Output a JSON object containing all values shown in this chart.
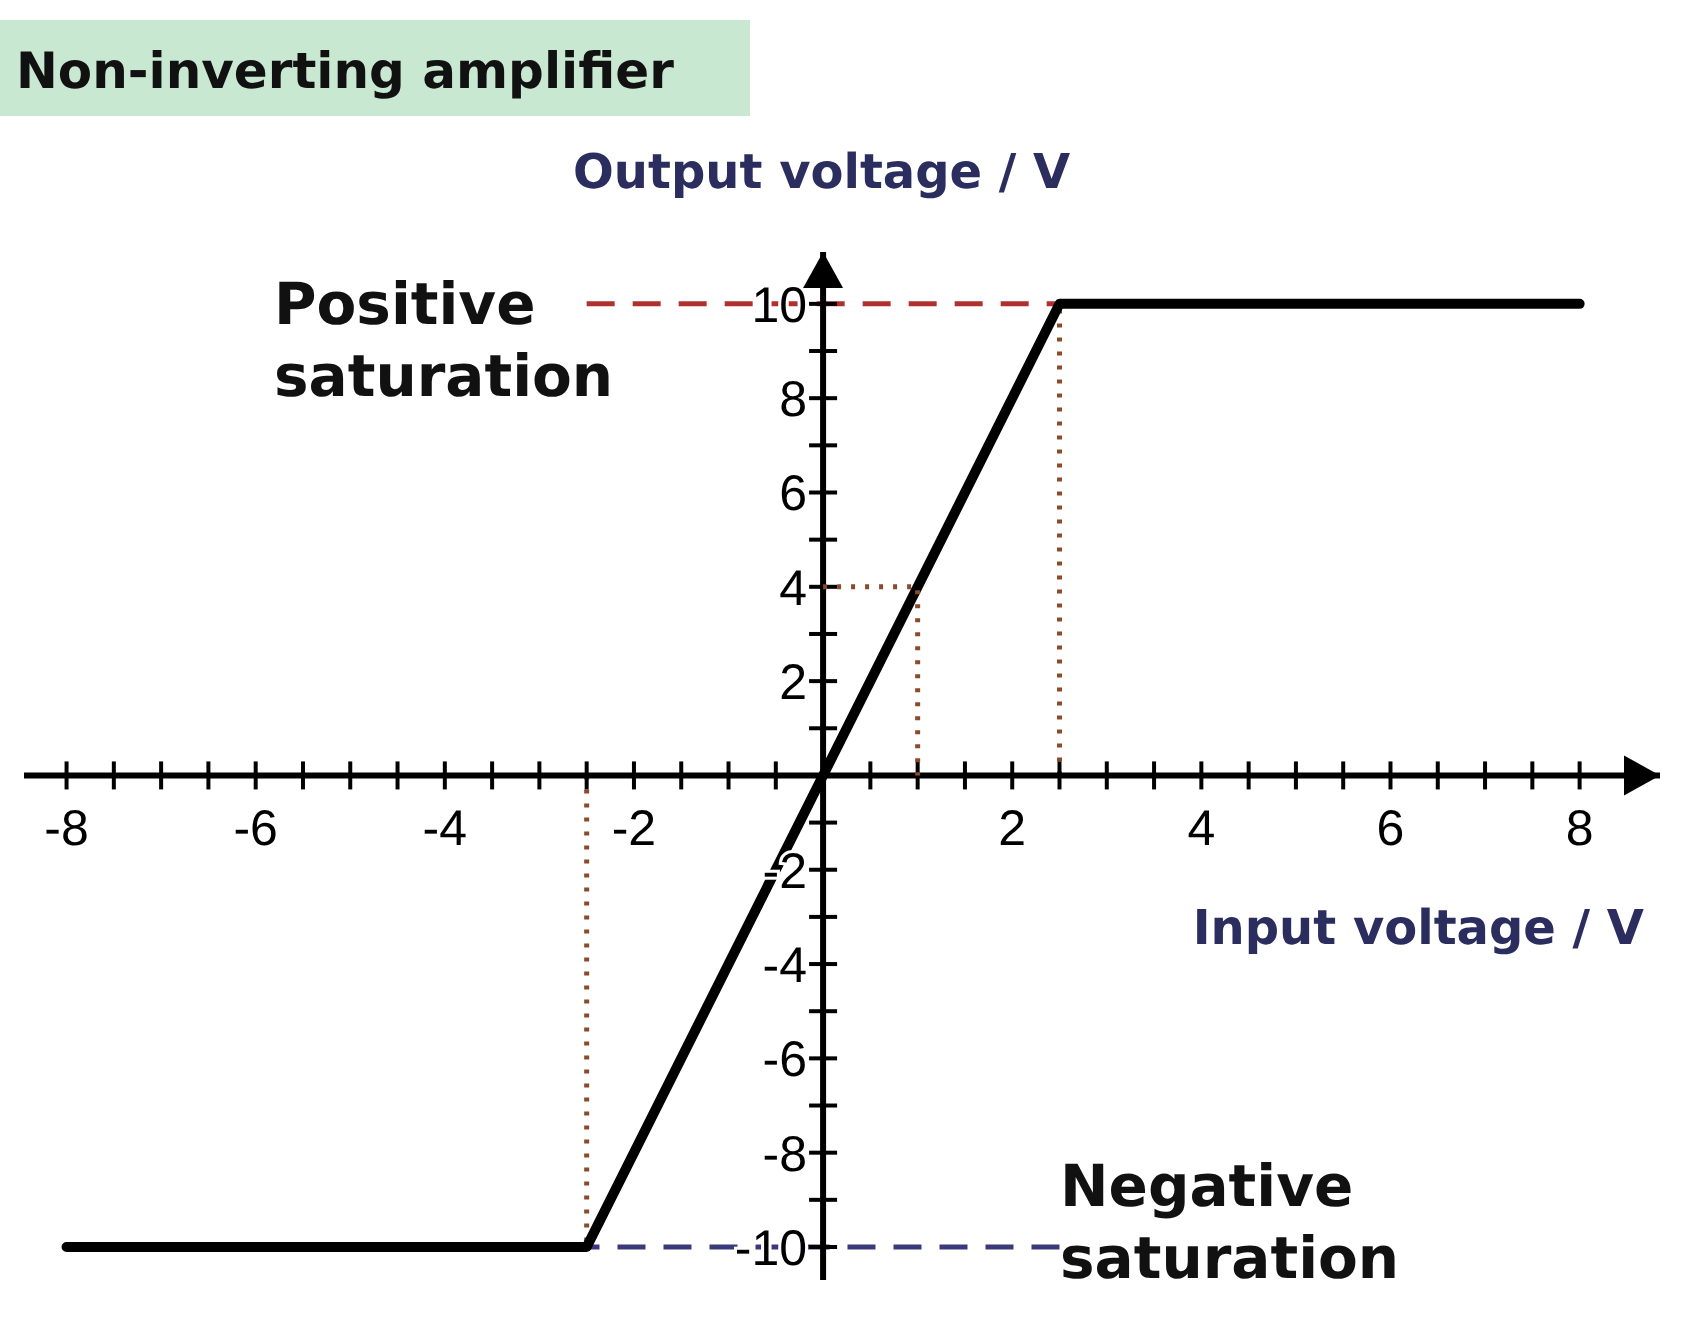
{
  "chart_data": {
    "type": "line",
    "title": "Non-inverting amplifier",
    "xlabel": "Input voltage / V",
    "ylabel": "Output voltage / V",
    "xlim": [
      -8.45,
      8.85
    ],
    "ylim": [
      -10.7,
      11.1
    ],
    "xticks": [
      -8,
      {
        "value": -7.5,
        "label": null
      },
      {
        "value": -7,
        "label": null
      },
      {
        "value": -6.5,
        "label": null
      },
      -6,
      {
        "value": -5.5,
        "label": null
      },
      {
        "value": -5,
        "label": null
      },
      {
        "value": -4.5,
        "label": null
      },
      -4,
      {
        "value": -3.5,
        "label": null
      },
      {
        "value": -3,
        "label": null
      },
      {
        "value": -2.5,
        "label": null
      },
      -2,
      {
        "value": -1.5,
        "label": null
      },
      {
        "value": -1,
        "label": null
      },
      {
        "value": -0.5,
        "label": null
      },
      {
        "value": 0.5,
        "label": null
      },
      {
        "value": 1,
        "label": null
      },
      {
        "value": 1.5,
        "label": null
      },
      2,
      {
        "value": 2.5,
        "label": null
      },
      {
        "value": 3,
        "label": null
      },
      {
        "value": 3.5,
        "label": null
      },
      4,
      {
        "value": 4.5,
        "label": null
      },
      {
        "value": 5,
        "label": null
      },
      {
        "value": 5.5,
        "label": null
      },
      6,
      {
        "value": 6.5,
        "label": null
      },
      {
        "value": 7,
        "label": null
      },
      {
        "value": 7.5,
        "label": null
      },
      8
    ],
    "yticks": [
      -10,
      {
        "value": -9,
        "label": null
      },
      -8,
      {
        "value": -7,
        "label": null
      },
      -6,
      {
        "value": -5,
        "label": null
      },
      -4,
      {
        "value": -3,
        "label": null
      },
      -2,
      {
        "value": -1,
        "label": null
      },
      {
        "value": 1,
        "label": null
      },
      2,
      {
        "value": 3,
        "label": null
      },
      4,
      {
        "value": 5,
        "label": null
      },
      6,
      {
        "value": 7,
        "label": null
      },
      8,
      {
        "value": 9,
        "label": null
      },
      10
    ],
    "marker": "none",
    "line_style": "solid",
    "grid": false,
    "series": [
      {
        "color": "#000000",
        "x": [
          -8,
          -2.5,
          2.5,
          8
        ],
        "values": [
          -10,
          -10,
          10,
          10
        ]
      },
      {
        "color": "#8b4a2b",
        "x": [
          0,
          1,
          1
        ],
        "values": [
          4,
          4,
          0
        ],
        "line_style": "dotted"
      }
    ],
    "ref_lines": [
      {
        "axis": "y",
        "value": 10,
        "color": "#b03030",
        "line_style": "dashed"
      },
      {
        "axis": "y",
        "value": -10,
        "color": "#3a3a7a",
        "line_style": "dashed"
      },
      {
        "axis": "x",
        "value": 2.5,
        "color": "#8b4a2b",
        "line_style": "dotted"
      },
      {
        "axis": "x",
        "value": -2.5,
        "color": "#8b4a2b",
        "line_style": "dotted"
      }
    ],
    "annotations": [
      "Positive saturation",
      "Negative saturation"
    ]
  }
}
